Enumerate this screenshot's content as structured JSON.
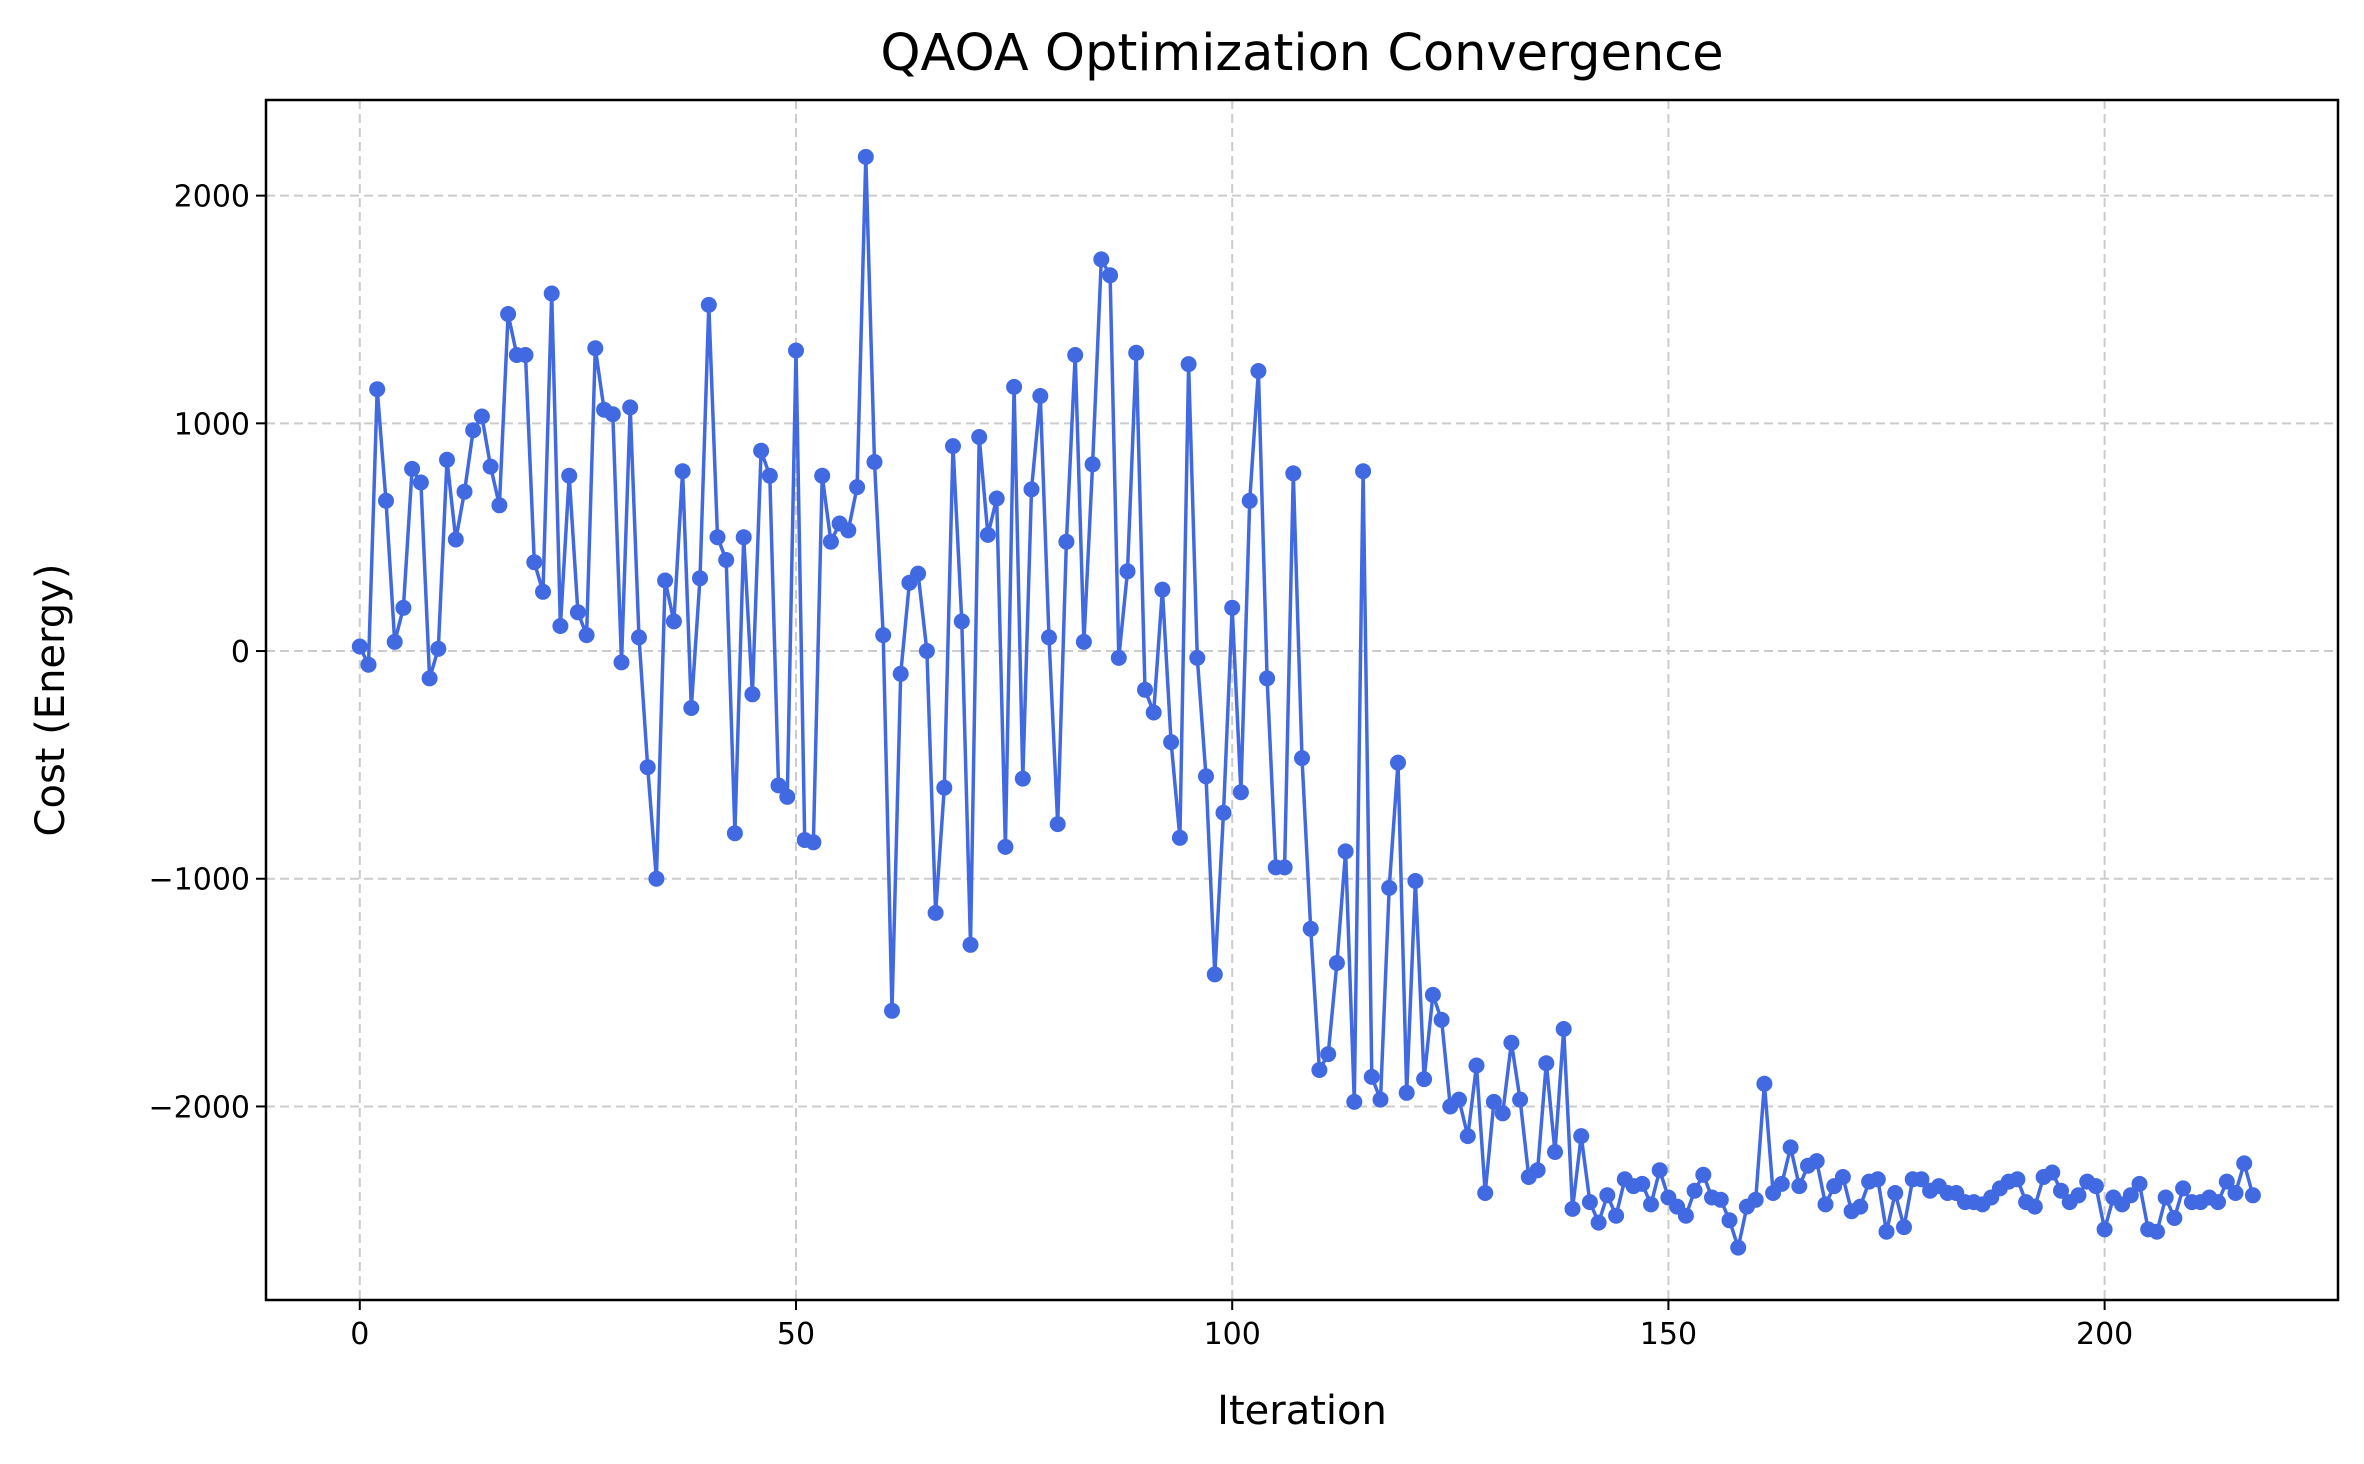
{
  "chart_data": {
    "type": "line",
    "title": "QAOA Optimization Convergence",
    "xlabel": "Iteration",
    "ylabel": "Cost (Energy)",
    "xlim": [
      -10.75,
      226.75
    ],
    "ylim": [
      -2850,
      2420
    ],
    "xticks": [
      0,
      50,
      100,
      150,
      200
    ],
    "yticks": [
      -2000,
      -1000,
      0,
      1000,
      2000
    ],
    "xtick_labels": [
      "0",
      "50",
      "100",
      "150",
      "200"
    ],
    "ytick_labels": [
      "−2000",
      "−1000",
      "0",
      "1000",
      "2000"
    ],
    "grid": true,
    "legend": "none",
    "series": [
      {
        "color": "#4169e1",
        "marker": "circle",
        "values": [
          20,
          -60,
          1150,
          660,
          40,
          190,
          800,
          740,
          -120,
          10,
          840,
          490,
          700,
          970,
          1030,
          810,
          640,
          1480,
          1300,
          1300,
          390,
          260,
          1570,
          110,
          770,
          170,
          70,
          1330,
          1060,
          1040,
          -50,
          1070,
          60,
          -510,
          -1000,
          310,
          130,
          790,
          -250,
          320,
          1520,
          500,
          400,
          -800,
          500,
          -190,
          880,
          770,
          -590,
          -640,
          1320,
          -830,
          -840,
          770,
          480,
          560,
          530,
          720,
          2170,
          830,
          70,
          -1580,
          -100,
          300,
          340,
          0,
          -1150,
          -600,
          900,
          130,
          -1290,
          940,
          510,
          670,
          -860,
          1160,
          -560,
          710,
          1120,
          60,
          -760,
          480,
          1300,
          40,
          820,
          1720,
          1650,
          -30,
          350,
          1310,
          -170,
          -270,
          270,
          -400,
          -820,
          1260,
          -30,
          -550,
          -1420,
          -710,
          190,
          -620,
          660,
          1230,
          -120,
          -950,
          -950,
          780,
          -470,
          -1220,
          -1840,
          -1770,
          -1370,
          -880,
          -1980,
          790,
          -1870,
          -1970,
          -1040,
          -490,
          -1940,
          -1010,
          -1880,
          -1510,
          -1620,
          -2000,
          -1970,
          -2130,
          -1820,
          -2380,
          -1980,
          -2030,
          -1720,
          -1970,
          -2310,
          -2280,
          -1810,
          -2200,
          -1660,
          -2450,
          -2130,
          -2420,
          -2510,
          -2390,
          -2480,
          -2320,
          -2350,
          -2340,
          -2430,
          -2280,
          -2400,
          -2440,
          -2480,
          -2370,
          -2300,
          -2400,
          -2410,
          -2500,
          -2620,
          -2440,
          -2410,
          -1900,
          -2380,
          -2340,
          -2180,
          -2350,
          -2260,
          -2240,
          -2430,
          -2350,
          -2310,
          -2460,
          -2440,
          -2330,
          -2320,
          -2550,
          -2380,
          -2530,
          -2320,
          -2320,
          -2370,
          -2350,
          -2380,
          -2380,
          -2420,
          -2420,
          -2430,
          -2400,
          -2360,
          -2330,
          -2320,
          -2420,
          -2440,
          -2310,
          -2290,
          -2370,
          -2420,
          -2390,
          -2330,
          -2350,
          -2540,
          -2400,
          -2430,
          -2390,
          -2340,
          -2540,
          -2550,
          -2400,
          -2490,
          -2360,
          -2420,
          -2420,
          -2400,
          -2420,
          -2330,
          -2380,
          -2250,
          -2390
        ]
      }
    ]
  }
}
